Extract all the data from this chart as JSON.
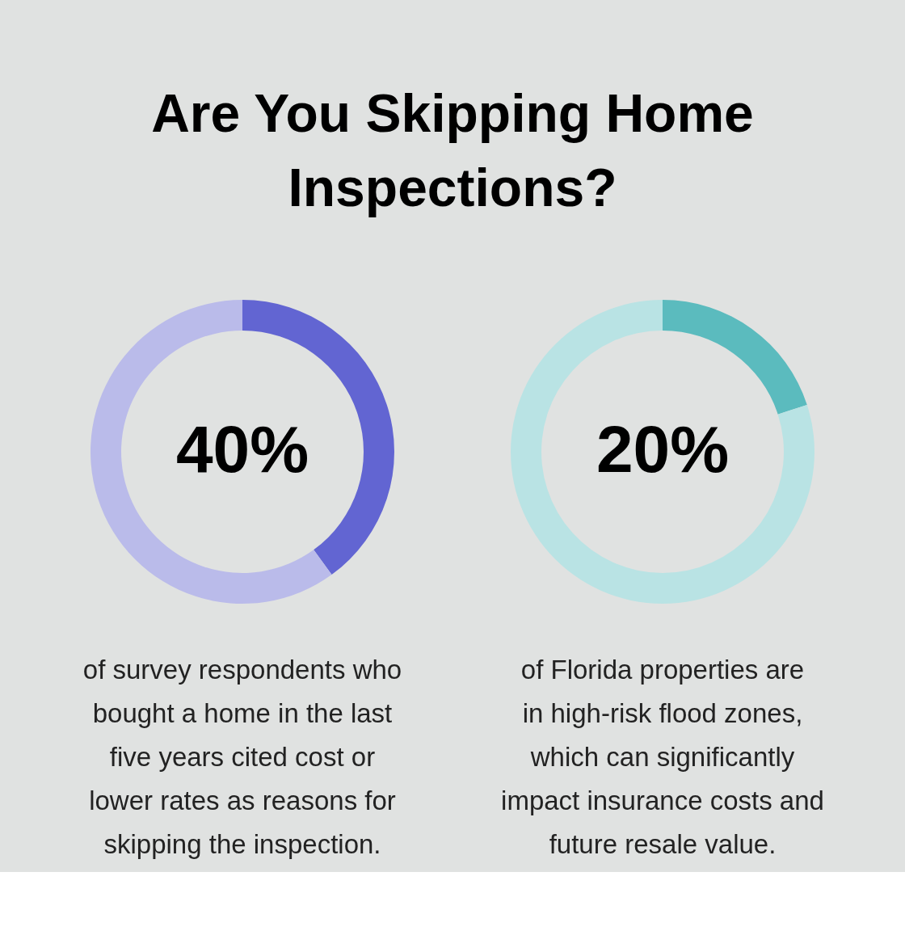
{
  "chart_data": [
    {
      "type": "donut",
      "title": "Are You Skipping Home Inspections?",
      "categories": [
        null,
        null
      ],
      "values": [
        40,
        60
      ],
      "colors": [
        "#6265d2",
        "#babbea"
      ],
      "value_labels": [
        "40%",
        null
      ],
      "legend": false,
      "annotations": [
        "of survey respondents who bought a home in the last five years cited cost or lower rates as reasons for skipping the inspection."
      ]
    },
    {
      "type": "donut",
      "categories": [
        null,
        null
      ],
      "values": [
        20,
        80
      ],
      "colors": [
        "#5bbbbe",
        "#b9e3e4"
      ],
      "value_labels": [
        "20%",
        null
      ],
      "legend": false,
      "annotations": [
        "of Florida properties are in high-risk flood zones, which can significantly impact insurance costs and future resale value."
      ]
    }
  ]
}
